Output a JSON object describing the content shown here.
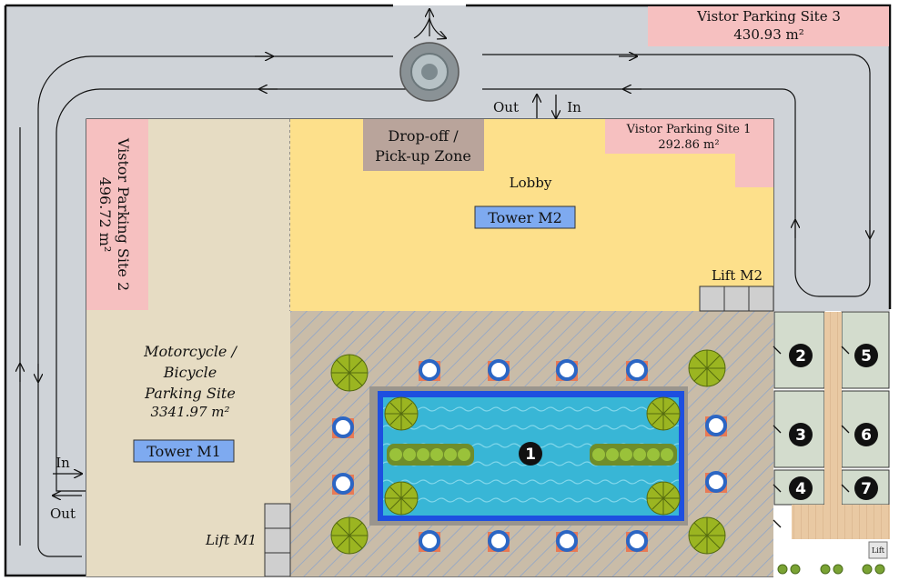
{
  "visitor_parking_1": {
    "name": "Vistor Parking Site 1",
    "area": "292.86 m²"
  },
  "visitor_parking_2": {
    "name": "Vistor Parking Site 2",
    "area": "496.72 m²"
  },
  "visitor_parking_3": {
    "name": "Vistor Parking Site 3",
    "area": "430.93 m²"
  },
  "motorcycle_site": {
    "line1": "Motorcycle /",
    "line2": "Bicycle",
    "line3": "Parking Site",
    "area": "3341.97 m²"
  },
  "dropoff": {
    "line1": "Drop-off /",
    "line2": "Pick-up Zone"
  },
  "lobby": "Lobby",
  "tower_m1": "Tower M1",
  "tower_m2": "Tower M2",
  "lift_m1": "Lift M1",
  "lift_m2": "Lift M2",
  "lift_small": "Lift",
  "entrance_top": {
    "out": "Out",
    "in": "In"
  },
  "entrance_left": {
    "in": "In",
    "out": "Out"
  },
  "markers": [
    "1",
    "2",
    "3",
    "4",
    "5",
    "6",
    "7"
  ],
  "colors": {
    "road": "#cfd3d8",
    "visitor_parking": "#f6c0c0",
    "lobby": "#fde08b",
    "motorcycle": "#e6dcc3",
    "dropoff": "#b9a49b",
    "tower": "#7eaaf0",
    "pool_water": "#34b3d4",
    "pool_edge": "#1d4fe0",
    "deck": "#c7b9a4",
    "room": "#d3dccd"
  }
}
